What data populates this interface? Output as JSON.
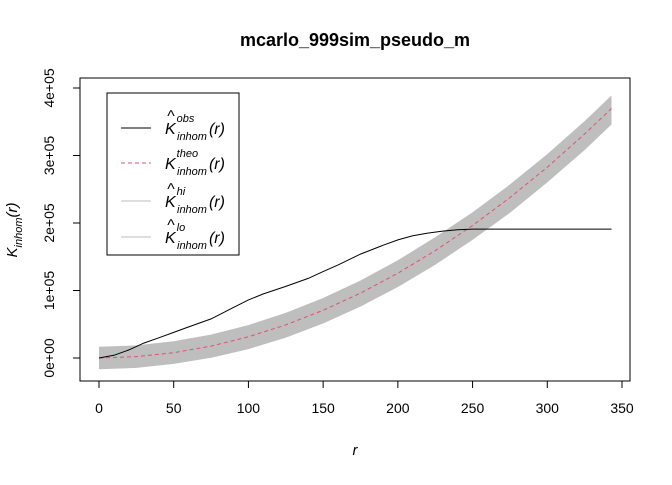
{
  "chart_data": {
    "type": "line",
    "title": "mcarlo_999sim_pseudo_m",
    "xlabel": "r",
    "ylabel": {
      "main": "K",
      "sub": "inhom",
      "arg": "(r)"
    },
    "xlim": [
      0,
      343
    ],
    "ylim": [
      -16000,
      400000
    ],
    "x_ticks": [
      0,
      50,
      100,
      150,
      200,
      250,
      300,
      350
    ],
    "x_tick_labels": [
      "0",
      "50",
      "100",
      "150",
      "200",
      "250",
      "300",
      "350"
    ],
    "y_ticks": [
      0,
      100000,
      200000,
      300000,
      400000
    ],
    "y_tick_labels": [
      "0e+00",
      "1e+05",
      "2e+05",
      "3e+05",
      "4e+05"
    ],
    "grid": false,
    "legend_position": "top-left",
    "series": [
      {
        "name": "obs",
        "color": "#000000",
        "dash": "solid",
        "x": [
          0,
          10,
          20,
          30,
          40,
          50,
          60,
          75,
          90,
          100,
          110,
          125,
          140,
          150,
          160,
          175,
          190,
          200,
          210,
          220,
          230,
          240,
          250,
          260,
          300,
          343
        ],
        "y": [
          0,
          4000,
          12000,
          22000,
          30000,
          38000,
          46000,
          58000,
          75000,
          86000,
          95000,
          106000,
          118000,
          128000,
          138000,
          154000,
          167000,
          175000,
          181000,
          185000,
          188000,
          190000,
          191000,
          191000,
          191000,
          191000
        ]
      },
      {
        "name": "theo",
        "color": "#df536b",
        "dash": "dashed",
        "x": [
          0,
          25,
          50,
          75,
          100,
          125,
          150,
          175,
          200,
          225,
          250,
          275,
          300,
          325,
          343
        ],
        "y": [
          0,
          2000,
          7900,
          17700,
          31400,
          49100,
          70700,
          96200,
          125700,
          159000,
          196300,
          237600,
          282700,
          331800,
          369600
        ]
      },
      {
        "name": "hi",
        "color": "#bebebe",
        "x": [
          0,
          25,
          50,
          75,
          100,
          125,
          150,
          175,
          200,
          225,
          250,
          275,
          300,
          325,
          343
        ],
        "y": [
          16000,
          18000,
          24000,
          34000,
          48000,
          66000,
          88000,
          114000,
          144000,
          178000,
          215000,
          256000,
          301000,
          350000,
          388000
        ]
      },
      {
        "name": "lo",
        "color": "#bebebe",
        "x": [
          0,
          25,
          50,
          75,
          100,
          125,
          150,
          175,
          200,
          225,
          250,
          275,
          300,
          325,
          343
        ],
        "y": [
          -16000,
          -14000,
          -8000,
          1000,
          14000,
          31000,
          52000,
          77000,
          106000,
          139000,
          176000,
          216000,
          261000,
          309000,
          347000
        ]
      }
    ],
    "legend": [
      {
        "key": "obs",
        "symbol": "K",
        "hat": true,
        "sup": "obs",
        "sub": "inhom",
        "arg": "(r)"
      },
      {
        "key": "theo",
        "symbol": "K",
        "hat": false,
        "sup": "theo",
        "sub": "inhom",
        "arg": "(r)"
      },
      {
        "key": "hi",
        "symbol": "K",
        "hat": true,
        "sup": "hi",
        "sub": "inhom",
        "arg": "(r)"
      },
      {
        "key": "lo",
        "symbol": "K",
        "hat": true,
        "sup": "lo",
        "sub": "inhom",
        "arg": "(r)"
      }
    ]
  }
}
